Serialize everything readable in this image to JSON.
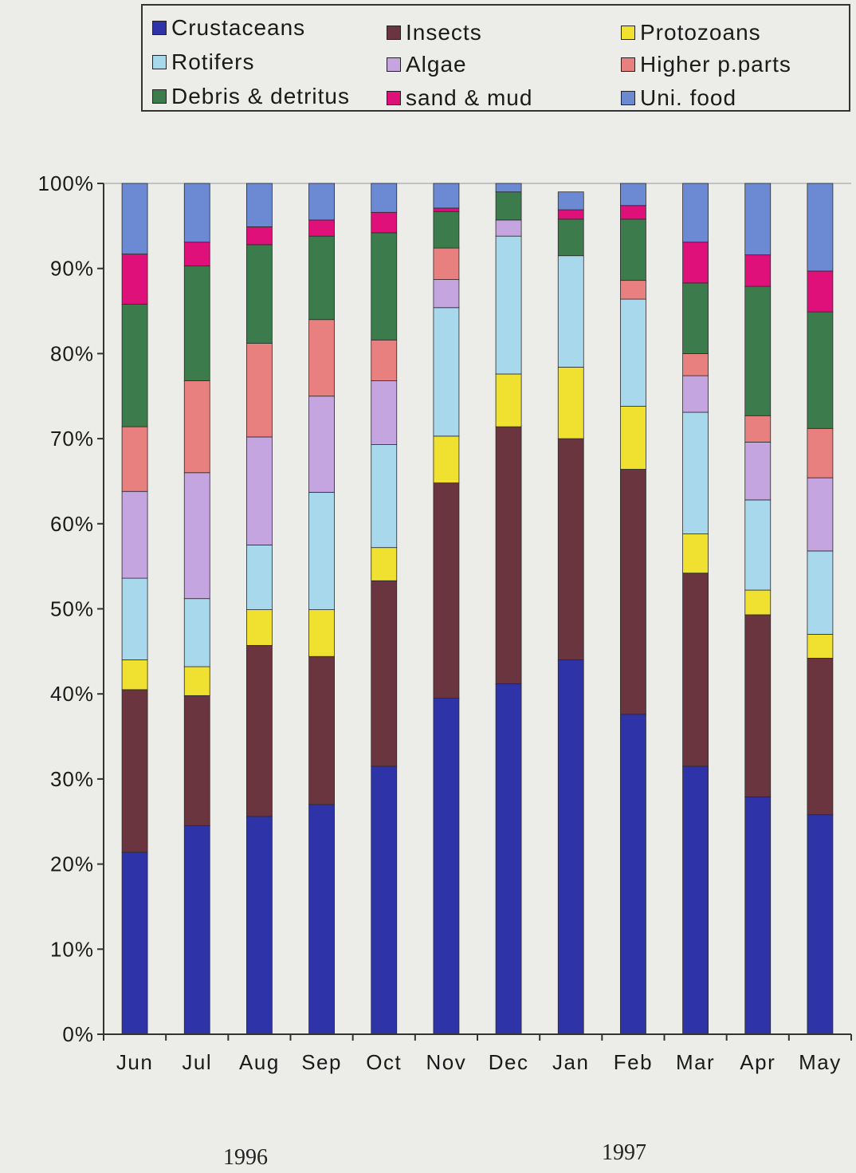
{
  "chart_data": {
    "type": "bar",
    "stacked": true,
    "categories": [
      "Jun",
      "Jul",
      "Aug",
      "Sep",
      "Oct",
      "Nov",
      "Dec",
      "Jan",
      "Feb",
      "Mar",
      "Apr",
      "May"
    ],
    "year_labels": [
      "1996",
      "1997"
    ],
    "ylim": [
      0,
      100
    ],
    "yticks": [
      "0%",
      "10%",
      "20%",
      "30%",
      "40%",
      "50%",
      "60%",
      "70%",
      "80%",
      "90%",
      "100%"
    ],
    "legend_position": "top",
    "series": [
      {
        "name": "Crustaceans",
        "color": "#2e34a8",
        "values": [
          21.4,
          24.5,
          25.6,
          27.0,
          31.5,
          39.5,
          41.2,
          44.0,
          37.6,
          31.5,
          27.9,
          25.8
        ]
      },
      {
        "name": "Insects",
        "color": "#6b3540",
        "values": [
          19.1,
          15.3,
          20.1,
          17.4,
          21.8,
          25.3,
          30.2,
          26.0,
          28.8,
          22.7,
          21.4,
          18.4
        ]
      },
      {
        "name": "Protozoans",
        "color": "#f0e030",
        "values": [
          3.5,
          3.4,
          4.2,
          5.5,
          3.9,
          5.5,
          6.2,
          8.4,
          7.4,
          4.6,
          2.9,
          2.8
        ]
      },
      {
        "name": "Rotifers",
        "color": "#a8d8ec",
        "values": [
          9.6,
          8.0,
          7.6,
          13.8,
          12.1,
          15.1,
          16.2,
          13.1,
          12.6,
          14.3,
          10.6,
          9.8
        ]
      },
      {
        "name": "Algae",
        "color": "#c5a5e0",
        "values": [
          10.2,
          14.8,
          12.7,
          11.3,
          7.5,
          3.3,
          1.9,
          0,
          0,
          4.3,
          6.8,
          8.6
        ]
      },
      {
        "name": "Higher p.parts",
        "color": "#e88080",
        "values": [
          7.6,
          10.8,
          11.0,
          9.0,
          4.8,
          3.7,
          0,
          0,
          2.2,
          2.6,
          3.1,
          5.8
        ]
      },
      {
        "name": "Debris & detritus",
        "color": "#3c7c4c",
        "values": [
          14.4,
          13.5,
          11.6,
          9.8,
          12.6,
          4.3,
          3.3,
          4.3,
          7.2,
          8.3,
          15.2,
          13.7
        ]
      },
      {
        "name": "sand & mud",
        "color": "#e0107a",
        "values": [
          5.9,
          2.8,
          2.1,
          1.9,
          2.4,
          0.4,
          0,
          1.1,
          1.6,
          4.8,
          3.7,
          4.8
        ]
      },
      {
        "name": "Uni. food",
        "color": "#6c8ad4",
        "values": [
          8.3,
          6.9,
          5.1,
          4.3,
          3.4,
          2.9,
          1.0,
          2.1,
          2.6,
          6.9,
          8.4,
          10.3
        ]
      }
    ]
  }
}
